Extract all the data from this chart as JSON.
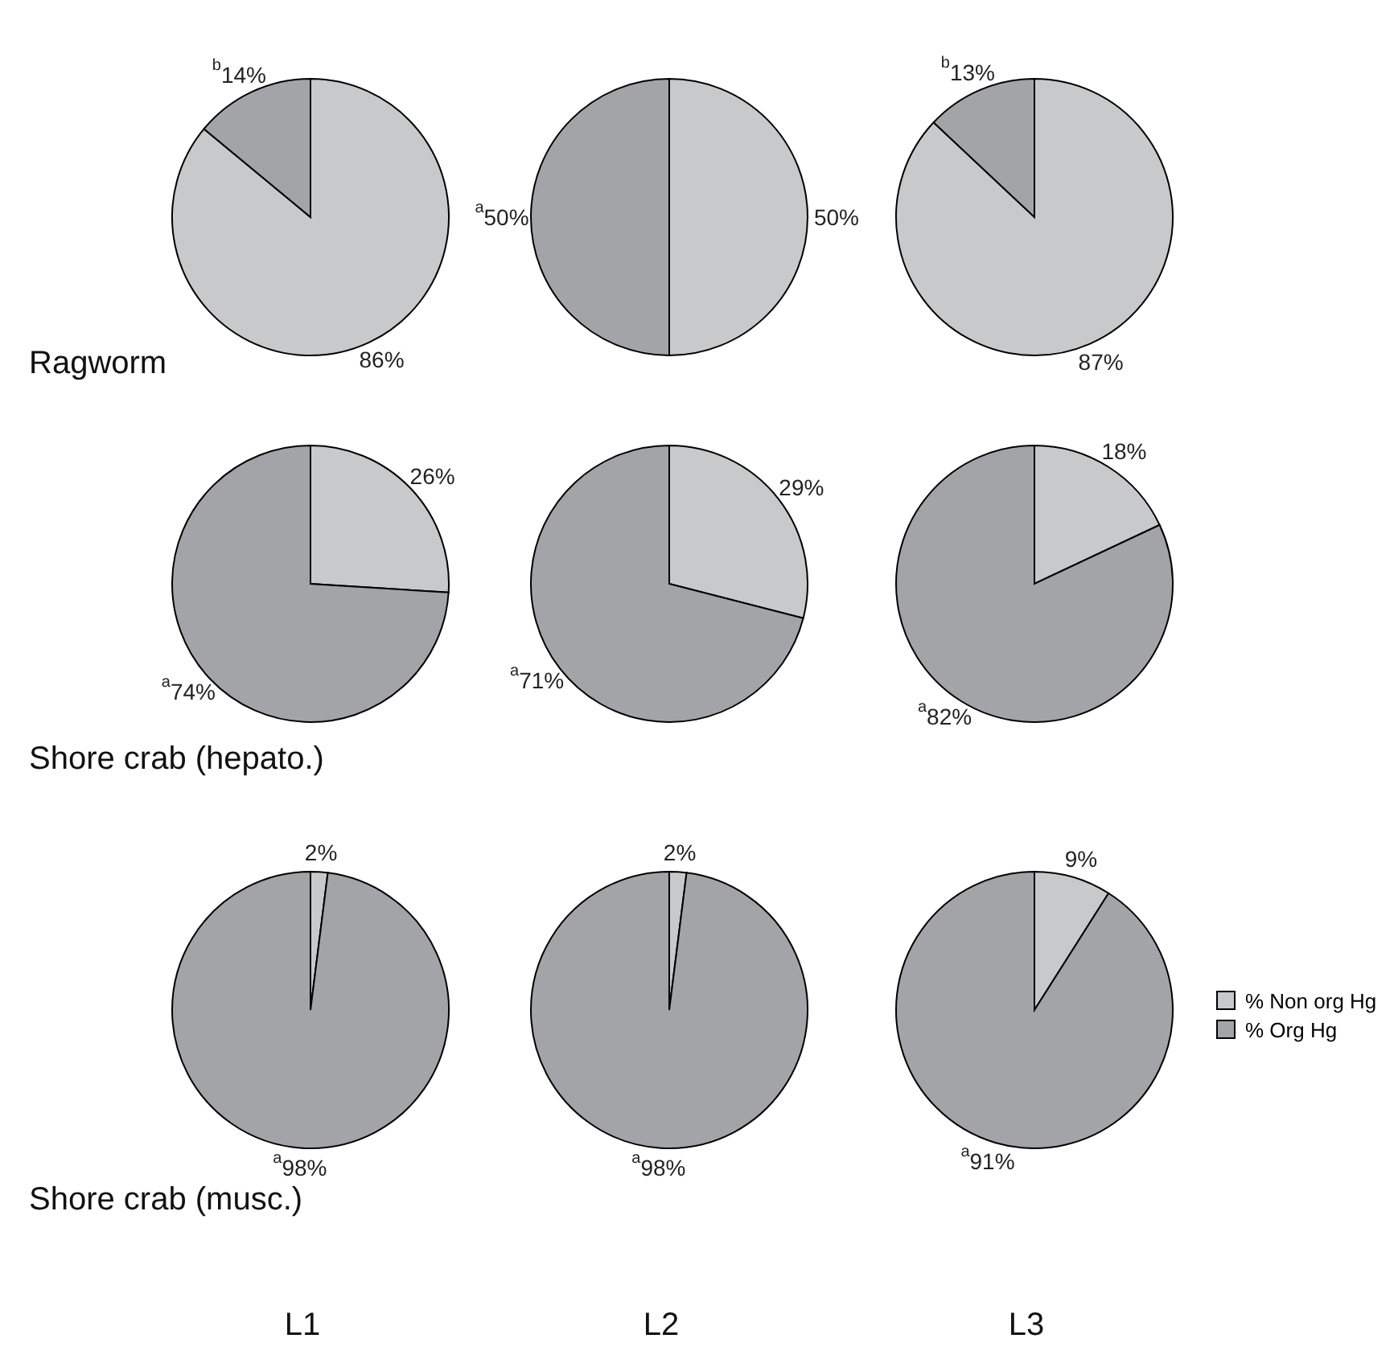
{
  "chart_data": [
    {
      "type": "pie",
      "title": "Ragworm",
      "categories": [
        null,
        null
      ],
      "values": [
        86,
        14
      ],
      "colors": [
        "#c8c9cb",
        "#a3a4a7"
      ],
      "value_labels": [
        "86%",
        "$^{b}$14%"
      ]
    },
    {
      "type": "pie",
      "categories": [
        null,
        null
      ],
      "values": [
        50,
        50
      ],
      "colors": [
        "#c8c9cb",
        "#a3a4a7"
      ],
      "value_labels": [
        "50%",
        "$^{a}$50%"
      ]
    },
    {
      "type": "pie",
      "categories": [
        null,
        null
      ],
      "values": [
        87,
        13
      ],
      "colors": [
        "#c8c9cb",
        "#a3a4a7"
      ],
      "value_labels": [
        "87%",
        "$^{b}$13%"
      ]
    },
    {
      "type": "pie",
      "title": "Shore crab (hepato.)",
      "categories": [
        null,
        null
      ],
      "values": [
        26,
        74
      ],
      "colors": [
        "#c8c9cb",
        "#a3a4a7"
      ],
      "value_labels": [
        "26%",
        "$^{a}$74%"
      ]
    },
    {
      "type": "pie",
      "categories": [
        null,
        null
      ],
      "values": [
        29,
        71
      ],
      "colors": [
        "#c8c9cb",
        "#a3a4a7"
      ],
      "value_labels": [
        "29%",
        "$^{a}$71%"
      ]
    },
    {
      "type": "pie",
      "categories": [
        null,
        null
      ],
      "values": [
        18,
        82
      ],
      "colors": [
        "#c8c9cb",
        "#a3a4a7"
      ],
      "value_labels": [
        "18%",
        "$^{a}$82%"
      ]
    },
    {
      "type": "pie",
      "title": "Shore crab (musc.)",
      "xlabel": "L1",
      "categories": [
        null,
        null
      ],
      "values": [
        2,
        98
      ],
      "colors": [
        "#c8c9cb",
        "#a3a4a7"
      ],
      "value_labels": [
        "2%",
        "$^{a}$98%"
      ]
    },
    {
      "type": "pie",
      "xlabel": "L2",
      "categories": [
        null,
        null
      ],
      "values": [
        2,
        98
      ],
      "colors": [
        "#c8c9cb",
        "#a3a4a7"
      ],
      "value_labels": [
        "2%",
        "$^{a}$98%"
      ]
    },
    {
      "type": "pie",
      "xlabel": "L3",
      "categories": [
        "% Non org Hg",
        "% Org Hg"
      ],
      "values": [
        9,
        91
      ],
      "colors": [
        "#c8c9cb",
        "#a3a4a7"
      ],
      "value_labels": [
        "9%",
        "$^{a}$91%"
      ],
      "legend": "right"
    }
  ]
}
